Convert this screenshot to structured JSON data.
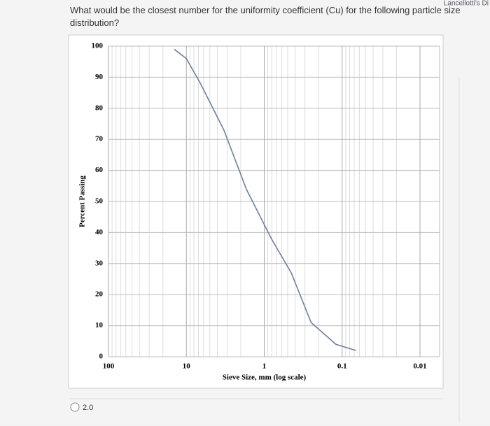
{
  "corner_text": "Lancellotti's Di",
  "question": "What would be the closest number for the uniformity coefficient (Cu) for the following particle size distribution?",
  "options": [
    "2.0"
  ],
  "chart_data": {
    "type": "line",
    "x_label": "Sieve Size, mm (log scale)",
    "y_label": "Percent Passing",
    "x_scale": "log",
    "grid": true,
    "minor_grid": true,
    "xlim": [
      100,
      0.01
    ],
    "ylim": [
      0,
      100
    ],
    "xticks": [
      100,
      10,
      1,
      0.1,
      0.01
    ],
    "yticks": [
      0,
      10,
      20,
      30,
      40,
      50,
      60,
      70,
      80,
      90,
      100
    ],
    "series": [
      {
        "color": "#6f7f99",
        "x": [
          14.3,
          10,
          6.6,
          3.3,
          1.7,
          0.81,
          0.45,
          0.25,
          0.12,
          0.066
        ],
        "values": [
          99,
          96,
          88,
          73,
          54,
          38,
          27,
          11,
          4,
          2
        ]
      }
    ]
  }
}
